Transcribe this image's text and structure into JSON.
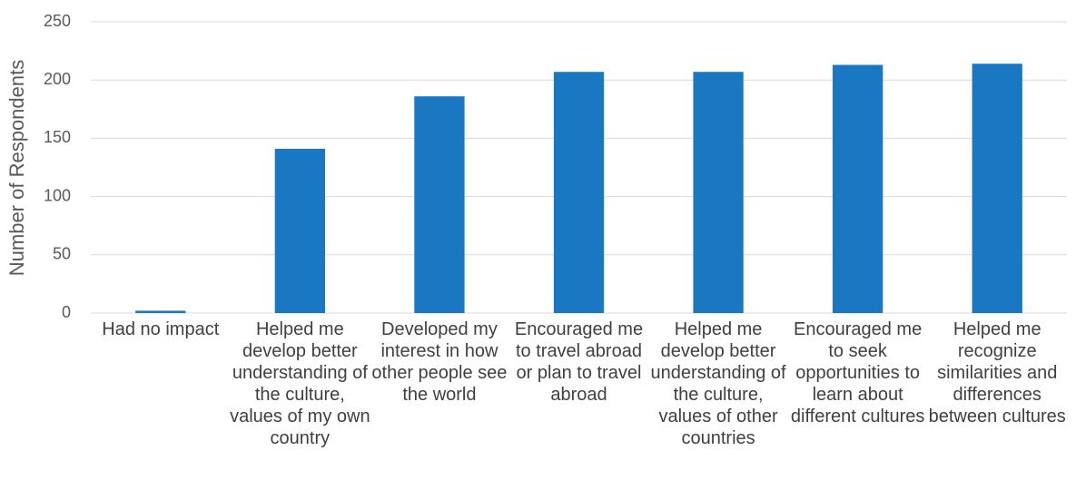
{
  "chart_data": {
    "type": "bar",
    "y_label": "Number of Respondents",
    "categories": [
      "Had no impact",
      "Helped me develop better understanding of the culture, values of my own country",
      "Developed my interest in how other people see the world",
      "Encouraged me to travel abroad or plan to travel abroad",
      "Helped me develop better understanding of the culture, values of other countries",
      "Encouraged me to seek opportunities to learn about different cultures",
      "Helped me recognize similarities and differences between cultures"
    ],
    "values": [
      2,
      141,
      186,
      207,
      207,
      213,
      214
    ],
    "color": "#1a78c2",
    "ylim": [
      0,
      250
    ],
    "yticks": [
      0,
      50,
      100,
      150,
      200,
      250
    ],
    "grid": true
  }
}
